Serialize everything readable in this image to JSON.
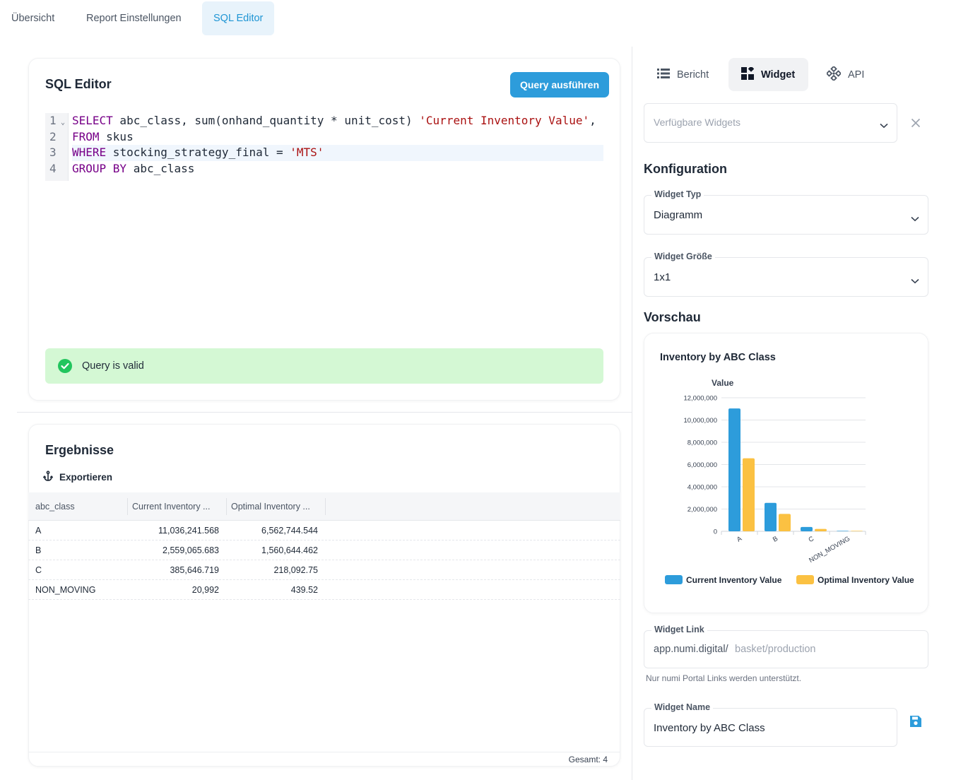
{
  "topnav": {
    "tabs": [
      {
        "label": "Übersicht"
      },
      {
        "label": "Report Einstellungen"
      },
      {
        "label": "SQL Editor"
      }
    ]
  },
  "editor": {
    "title": "SQL Editor",
    "run_button": "Query ausführen",
    "line_numbers": [
      "1",
      "2",
      "3",
      "4"
    ],
    "lines": [
      [
        {
          "t": "SELECT",
          "c": "kw"
        },
        {
          "t": " abc_class, sum(onhand_quantity * unit_cost) ",
          "c": ""
        },
        {
          "t": "'Current Inventory Value'",
          "c": "str"
        },
        {
          "t": ",",
          "c": ""
        }
      ],
      [
        {
          "t": "FROM",
          "c": "kw"
        },
        {
          "t": " skus",
          "c": ""
        }
      ],
      [
        {
          "t": "WHERE",
          "c": "kw"
        },
        {
          "t": " stocking_strategy_final = ",
          "c": ""
        },
        {
          "t": "'MTS'",
          "c": "str"
        }
      ],
      [
        {
          "t": "GROUP BY",
          "c": "kw"
        },
        {
          "t": " abc_class",
          "c": ""
        }
      ]
    ],
    "status": "Query is valid",
    "colors": {
      "accent": "#2d9cdb",
      "valid_bg": "#d4f8d4",
      "valid_icon": "#22c55e"
    }
  },
  "results": {
    "title": "Ergebnisse",
    "export_label": "Exportieren",
    "columns": [
      "abc_class",
      "Current Inventory ...",
      "Optimal Inventory ..."
    ],
    "rows": [
      [
        "A",
        "11,036,241.568",
        "6,562,744.544"
      ],
      [
        "B",
        "2,559,065.683",
        "1,560,644.462"
      ],
      [
        "C",
        "385,646.719",
        "218,092.75"
      ],
      [
        "NON_MOVING",
        "20,992",
        "439.52"
      ]
    ],
    "total": "Gesamt: 4"
  },
  "sidebar": {
    "tabs": [
      {
        "label": "Bericht",
        "icon": "list-icon"
      },
      {
        "label": "Widget",
        "icon": "widget-icon"
      },
      {
        "label": "API",
        "icon": "api-icon"
      }
    ],
    "widget_select_placeholder": "Verfügbare Widgets",
    "config_title": "Konfiguration",
    "widget_type_label": "Widget Typ",
    "widget_type_value": "Diagramm",
    "widget_size_label": "Widget Größe",
    "widget_size_value": "1x1",
    "preview_title": "Vorschau",
    "link_label": "Widget Link",
    "link_prefix": "app.numi.digital/",
    "link_placeholder": "basket/production",
    "link_hint": "Nur numi Portal Links werden unterstützt.",
    "name_label": "Widget Name",
    "name_value": "Inventory by ABC Class"
  },
  "chart_data": {
    "type": "bar",
    "title": "Inventory by ABC Class",
    "ylabel": "Value",
    "xlabel": "",
    "categories": [
      "A",
      "B",
      "C",
      "NON_MOVING"
    ],
    "series": [
      {
        "name": "Current Inventory Value",
        "values": [
          11036241.568,
          2559065.683,
          385646.719,
          20992
        ],
        "color": "#2d9cdb"
      },
      {
        "name": "Optimal Inventory Value",
        "values": [
          6562744.544,
          1560644.462,
          218092.75,
          439.52
        ],
        "color": "#fbc142"
      }
    ],
    "ylim": [
      0,
      12000000
    ],
    "yticks": [
      0,
      2000000,
      4000000,
      6000000,
      8000000,
      10000000,
      12000000
    ],
    "ytick_labels": [
      "0",
      "2,000,000",
      "4,000,000",
      "6,000,000",
      "8,000,000",
      "10,000,000",
      "12,000,000"
    ],
    "legend_position": "bottom",
    "grid": true
  }
}
